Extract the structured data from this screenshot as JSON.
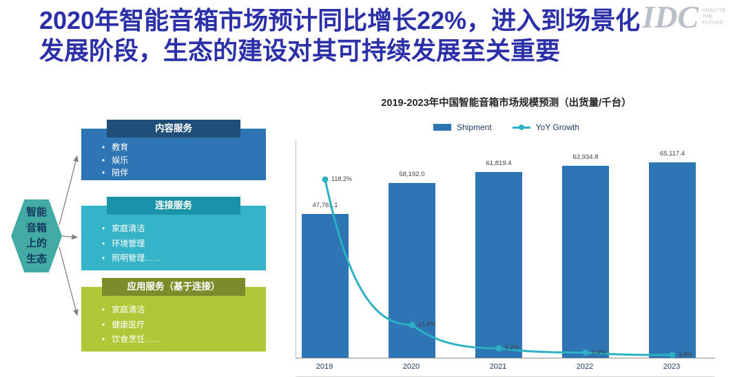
{
  "header": {
    "title_line1": "2020年智能音箱市场预计同比增长22%，进入到场景化",
    "title_line2": "发展阶段，生态的建设对其可持续发展至关重要",
    "logo_brand": "IDC",
    "logo_tagline_lines": [
      "ANALYZE",
      "THE",
      "FUTURE"
    ]
  },
  "diagram": {
    "hexagon_label": "智能音箱上的生态",
    "hexagon_color": "#44aba4",
    "boxes": [
      {
        "header": "内容服务",
        "items": [
          "教育",
          "娱乐",
          "陪伴"
        ],
        "header_color": "#1f4e79",
        "body_color": "#2e75b6"
      },
      {
        "header": "连接服务",
        "items": [
          "家庭清洁",
          "环境管理",
          "照明管理……"
        ],
        "header_color": "#1a93a8",
        "body_color": "#35b4c7"
      },
      {
        "header": "应用服务（基于连接）",
        "items": [
          "家庭清洁",
          "健康医疗",
          "饮食烹饪……"
        ],
        "header_color": "#7d8b2a",
        "body_color": "#adc938"
      }
    ]
  },
  "chart_data": {
    "type": "bar",
    "title": "2019-2023年中国智能音箱市场规模预测（出货量/千台）",
    "categories": [
      "2019",
      "2020",
      "2021",
      "2022",
      "2023"
    ],
    "series": [
      {
        "name": "Shipment",
        "type": "bar",
        "color": "#2e75b6",
        "values": [
          47761.1,
          58192.0,
          61819.4,
          63934.8,
          65117.4
        ],
        "labels": [
          "47,761.1",
          "58,192.0",
          "61,819.4",
          "63,934.8",
          "65,117.4"
        ]
      },
      {
        "name": "YoY Growth",
        "type": "line",
        "color": "#2cb0c4",
        "values": [
          118.2,
          21.8,
          6.2,
          3.4,
          1.8
        ],
        "labels": [
          "118.2%",
          "21.8%",
          "6.2%",
          "3.4%",
          "1.8%"
        ]
      }
    ],
    "ylim": [
      0,
      70000
    ],
    "legend_position": "top",
    "grid": false
  }
}
